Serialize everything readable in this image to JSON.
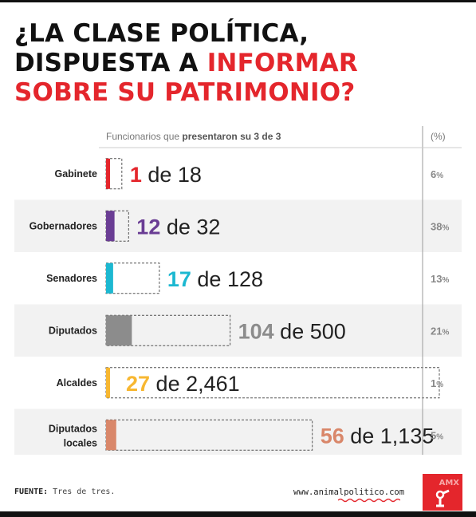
{
  "title": {
    "line1": "¿LA CLASE POLÍTICA,",
    "line2_a": "DISPUESTA A ",
    "line2_b": "INFORMAR",
    "line3": "SOBRE SU PATRIMONIO?"
  },
  "chart_data": {
    "type": "bar",
    "header_prefix": "Funcionarios que ",
    "header_bold": "presentaron su 3 de 3",
    "pct_header": "(%)",
    "rows": [
      {
        "category": "Gabinete",
        "category_lines": [
          "Gabinete"
        ],
        "value": 1,
        "total": 18,
        "value_label": "1",
        "total_label": "18",
        "of": "de",
        "pct_num": "6",
        "pct_sign": "%",
        "color": "#e4262c",
        "shaded": false
      },
      {
        "category": "Gobernadores",
        "category_lines": [
          "Gobernadores"
        ],
        "value": 12,
        "total": 32,
        "value_label": "12",
        "total_label": "32",
        "of": "de",
        "pct_num": "38",
        "pct_sign": "%",
        "color": "#6a3d94",
        "shaded": true
      },
      {
        "category": "Senadores",
        "category_lines": [
          "Senadores"
        ],
        "value": 17,
        "total": 128,
        "value_label": "17",
        "total_label": "128",
        "of": "de",
        "pct_num": "13",
        "pct_sign": "%",
        "color": "#1cb8d1",
        "shaded": false
      },
      {
        "category": "Diputados",
        "category_lines": [
          "Diputados"
        ],
        "value": 104,
        "total": 500,
        "value_label": "104",
        "total_label": "500",
        "of": "de",
        "pct_num": "21",
        "pct_sign": "%",
        "color": "#8c8c8c",
        "shaded": true
      },
      {
        "category": "Alcaldes",
        "category_lines": [
          "Alcaldes"
        ],
        "value": 27,
        "total": 2461,
        "value_label": "27",
        "total_label": "2,461",
        "of": "de",
        "pct_num": "1",
        "pct_sign": "%",
        "color": "#f7b731",
        "shaded": false
      },
      {
        "category": "Diputados locales",
        "category_lines": [
          "Diputados",
          "locales"
        ],
        "value": 56,
        "total": 1135,
        "value_label": "56",
        "total_label": "1,135",
        "of": "de",
        "pct_num": "5",
        "pct_sign": "%",
        "color": "#d9876a",
        "shaded": true
      }
    ]
  },
  "footer": {
    "source_label": "FUENTE:",
    "source_text": " Tres de tres.",
    "url": "www.animalpolitico.com",
    "logo_text": "AMX"
  },
  "colors": {
    "title_accent": "#e4262c",
    "row_shade": "#f2f2f2",
    "text": "#111111",
    "muted": "#777777"
  }
}
